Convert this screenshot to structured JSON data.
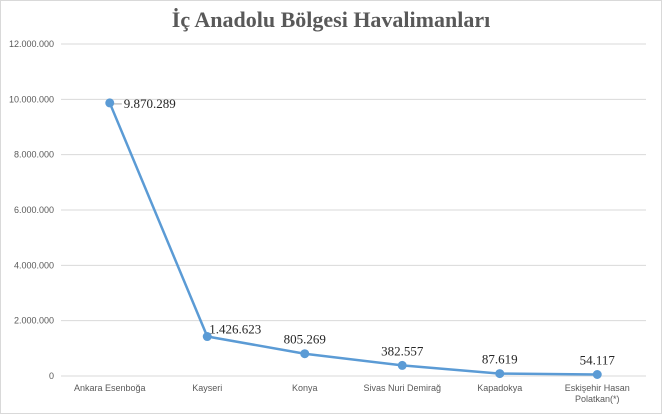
{
  "chart_data": {
    "type": "line",
    "title": "İç Anadolu Bölgesi Havalimanları",
    "xlabel": "",
    "ylabel": "",
    "categories": [
      "Ankara Esenboğa",
      "Kayseri",
      "Konya",
      "Sivas Nuri Demirağ",
      "Kapadokya",
      "Eskişehir Hasan Polatkan(*)"
    ],
    "series": [
      {
        "values": [
          9870289,
          1426623,
          805269,
          382557,
          87619,
          54117
        ],
        "labels": [
          "9.870.289",
          "1.426.623",
          "805.269",
          "382.557",
          "87.619",
          "54.117"
        ],
        "color": "#5b9bd5"
      }
    ],
    "ylim": [
      0,
      12000000
    ],
    "yticks": [
      0,
      2000000,
      4000000,
      6000000,
      8000000,
      10000000,
      12000000
    ],
    "ytick_labels": [
      "0",
      "2.000.000",
      "4.000.000",
      "6.000.000",
      "8.000.000",
      "10.000.000",
      "12.000.000"
    ],
    "grid": true,
    "legend": "none"
  }
}
